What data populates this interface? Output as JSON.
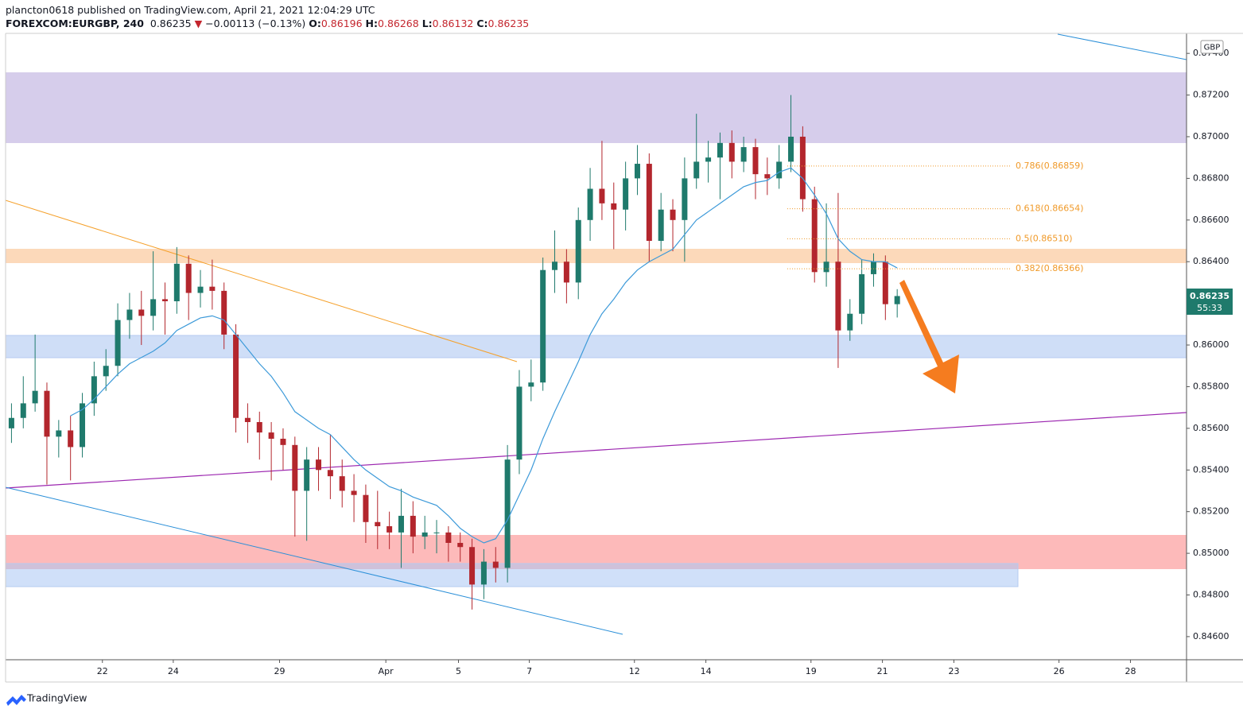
{
  "header": {
    "publisher": "plancton0618 published on TradingView.com, April 21, 2021 12:04:29 UTC",
    "symbol": "FOREXCOM:EURGBP, 240",
    "last": "0.86235",
    "change": "−0.00113 (−0.13%)",
    "o_label": "O:",
    "open": "0.86196",
    "h_label": "H:",
    "high": "0.86268",
    "l_label": "L:",
    "low": "0.86132",
    "c_label": "C:",
    "close": "0.86235"
  },
  "price_label": {
    "price": "0.86235",
    "countdown": "55:33"
  },
  "currency": "GBP",
  "brand": "TradingView",
  "chart_data": {
    "type": "candlestick",
    "up_color": "#1f7a6c",
    "down_color": "#b3262d",
    "ma_color": "#3d9ad9",
    "fib_color": "#f09a2a",
    "xlim": [
      0,
      200
    ],
    "ylim": [
      0.84489,
      0.87496
    ],
    "xticks": [
      {
        "value": 16.4,
        "label": "22"
      },
      {
        "value": 28.4,
        "label": "24"
      },
      {
        "value": 46.4,
        "label": "29"
      },
      {
        "value": 64.4,
        "label": "Apr"
      },
      {
        "value": 76.7,
        "label": "5"
      },
      {
        "value": 88.7,
        "label": "7"
      },
      {
        "value": 106.5,
        "label": "12"
      },
      {
        "value": 118.6,
        "label": "14"
      },
      {
        "value": 136.4,
        "label": "19"
      },
      {
        "value": 148.5,
        "label": "21"
      },
      {
        "value": 160.6,
        "label": "23"
      },
      {
        "value": 178.4,
        "label": "26"
      },
      {
        "value": 190.5,
        "label": "28"
      }
    ],
    "yticks": [
      {
        "value": 0.846,
        "label": "0.84600"
      },
      {
        "value": 0.848,
        "label": "0.84800"
      },
      {
        "value": 0.85,
        "label": "0.85000"
      },
      {
        "value": 0.852,
        "label": "0.85200"
      },
      {
        "value": 0.854,
        "label": "0.85400"
      },
      {
        "value": 0.856,
        "label": "0.85600"
      },
      {
        "value": 0.858,
        "label": "0.85800"
      },
      {
        "value": 0.86,
        "label": "0.86000"
      },
      {
        "value": 0.862,
        "label": "0.86200"
      },
      {
        "value": 0.864,
        "label": "0.86400"
      },
      {
        "value": 0.866,
        "label": "0.86600"
      },
      {
        "value": 0.868,
        "label": "0.86800"
      },
      {
        "value": 0.87,
        "label": "0.87000"
      },
      {
        "value": 0.872,
        "label": "0.87200"
      },
      {
        "value": 0.874,
        "label": "0.87400"
      }
    ],
    "x": [
      1,
      3,
      5,
      7,
      9,
      11,
      13,
      15,
      17,
      19,
      21,
      23,
      25,
      27,
      29,
      31,
      33,
      35,
      37,
      39,
      41,
      43,
      45,
      47,
      49,
      51,
      53,
      55,
      57,
      59,
      61,
      63,
      65,
      67,
      69,
      71,
      73,
      75,
      77,
      79,
      81,
      83,
      85,
      87,
      89,
      91,
      93,
      95,
      97,
      99,
      101,
      103,
      105,
      107,
      109,
      111,
      113,
      115,
      117,
      119,
      121,
      123,
      125,
      127,
      129,
      131,
      133,
      135,
      137,
      139,
      141,
      143,
      145,
      147,
      149,
      151
    ],
    "open": [
      0.856,
      0.8565,
      0.8572,
      0.8578,
      0.8556,
      0.8559,
      0.8551,
      0.8572,
      0.8585,
      0.859,
      0.8612,
      0.8617,
      0.8614,
      0.8622,
      0.8621,
      0.8639,
      0.8625,
      0.8628,
      0.8626,
      0.8605,
      0.8565,
      0.8563,
      0.8558,
      0.8555,
      0.8552,
      0.853,
      0.8545,
      0.854,
      0.8537,
      0.853,
      0.8528,
      0.8515,
      0.8513,
      0.851,
      0.8518,
      0.8508,
      0.851,
      0.851,
      0.8505,
      0.8503,
      0.8485,
      0.8496,
      0.8493,
      0.8545,
      0.858,
      0.8582,
      0.8636,
      0.864,
      0.863,
      0.866,
      0.8675,
      0.8668,
      0.8665,
      0.868,
      0.8687,
      0.865,
      0.8665,
      0.866,
      0.868,
      0.8688,
      0.869,
      0.8697,
      0.8688,
      0.8695,
      0.8682,
      0.868,
      0.8688,
      0.87,
      0.867,
      0.8635,
      0.864,
      0.8607,
      0.8615,
      0.8634,
      0.864,
      0.86196
    ],
    "high": [
      0.8572,
      0.8585,
      0.8605,
      0.8582,
      0.8564,
      0.8566,
      0.8577,
      0.8592,
      0.8598,
      0.862,
      0.8625,
      0.8626,
      0.8645,
      0.863,
      0.8647,
      0.8643,
      0.8636,
      0.8641,
      0.863,
      0.861,
      0.8572,
      0.8568,
      0.8563,
      0.856,
      0.8556,
      0.8551,
      0.8551,
      0.8557,
      0.8545,
      0.8538,
      0.8533,
      0.853,
      0.852,
      0.8531,
      0.8525,
      0.8518,
      0.8516,
      0.8513,
      0.851,
      0.8507,
      0.8502,
      0.8503,
      0.8552,
      0.8588,
      0.8593,
      0.8642,
      0.8655,
      0.8646,
      0.8666,
      0.8685,
      0.8698,
      0.8678,
      0.8688,
      0.8696,
      0.8692,
      0.8673,
      0.867,
      0.869,
      0.8711,
      0.8698,
      0.8702,
      0.8703,
      0.87,
      0.8699,
      0.869,
      0.8696,
      0.872,
      0.8705,
      0.8676,
      0.8668,
      0.8673,
      0.8622,
      0.8641,
      0.8644,
      0.8643,
      0.86268
    ],
    "low": [
      0.8553,
      0.856,
      0.8568,
      0.8533,
      0.8546,
      0.8535,
      0.8546,
      0.8566,
      0.8578,
      0.8585,
      0.8603,
      0.86,
      0.8607,
      0.8605,
      0.8615,
      0.8612,
      0.8618,
      0.8617,
      0.8598,
      0.8558,
      0.8553,
      0.8545,
      0.8535,
      0.854,
      0.8508,
      0.8506,
      0.853,
      0.8526,
      0.8522,
      0.8515,
      0.8505,
      0.8502,
      0.8502,
      0.8493,
      0.85,
      0.8502,
      0.85,
      0.8496,
      0.8496,
      0.8473,
      0.8478,
      0.8486,
      0.8486,
      0.8538,
      0.8573,
      0.8578,
      0.8625,
      0.862,
      0.8622,
      0.865,
      0.866,
      0.8646,
      0.8655,
      0.8672,
      0.864,
      0.8645,
      0.8645,
      0.864,
      0.8675,
      0.8678,
      0.867,
      0.868,
      0.8683,
      0.867,
      0.8672,
      0.8675,
      0.8683,
      0.8664,
      0.863,
      0.8628,
      0.8589,
      0.8602,
      0.861,
      0.8628,
      0.8612,
      0.86132
    ],
    "close": [
      0.8565,
      0.8572,
      0.8578,
      0.8556,
      0.8559,
      0.8551,
      0.8572,
      0.8585,
      0.859,
      0.8612,
      0.8617,
      0.8614,
      0.8622,
      0.8621,
      0.8639,
      0.8625,
      0.8628,
      0.8626,
      0.8605,
      0.8565,
      0.8563,
      0.8558,
      0.8555,
      0.8552,
      0.853,
      0.8545,
      0.854,
      0.8537,
      0.853,
      0.8528,
      0.8515,
      0.8513,
      0.851,
      0.8518,
      0.8508,
      0.851,
      0.851,
      0.8505,
      0.8503,
      0.8485,
      0.8496,
      0.8493,
      0.8545,
      0.858,
      0.8582,
      0.8636,
      0.864,
      0.863,
      0.866,
      0.8675,
      0.8668,
      0.8665,
      0.868,
      0.8687,
      0.865,
      0.8665,
      0.866,
      0.868,
      0.8688,
      0.869,
      0.8697,
      0.8688,
      0.8695,
      0.8682,
      0.868,
      0.8688,
      0.87,
      0.867,
      0.8635,
      0.864,
      0.8607,
      0.8615,
      0.8634,
      0.864,
      0.86196,
      0.86235
    ],
    "ma": [
      null,
      null,
      null,
      null,
      null,
      0.8566,
      0.8569,
      0.8574,
      0.858,
      0.8586,
      0.8591,
      0.8594,
      0.8597,
      0.8601,
      0.8607,
      0.861,
      0.8613,
      0.8614,
      0.8612,
      0.8605,
      0.8598,
      0.8591,
      0.8585,
      0.8577,
      0.8568,
      0.8564,
      0.856,
      0.8557,
      0.8551,
      0.8545,
      0.854,
      0.8536,
      0.8532,
      0.853,
      0.8527,
      0.8525,
      0.8523,
      0.8518,
      0.8512,
      0.8508,
      0.8505,
      0.8507,
      0.8516,
      0.8528,
      0.854,
      0.8555,
      0.8568,
      0.858,
      0.8592,
      0.8605,
      0.8615,
      0.8622,
      0.863,
      0.8636,
      0.864,
      0.8643,
      0.8646,
      0.8653,
      0.866,
      0.8664,
      0.8668,
      0.8672,
      0.8676,
      0.8678,
      0.8679,
      0.8683,
      0.8685,
      0.868,
      0.8672,
      0.8663,
      0.8651,
      0.8645,
      0.8641,
      0.864,
      0.864,
      0.8637
    ],
    "fib_levels": [
      {
        "value": 0.86859,
        "label": "0.786(0.86859)"
      },
      {
        "value": 0.86654,
        "label": "0.618(0.86654)"
      },
      {
        "value": 0.8651,
        "label": "0.5(0.86510)"
      },
      {
        "value": 0.86366,
        "label": "0.382(0.86366)"
      }
    ]
  }
}
